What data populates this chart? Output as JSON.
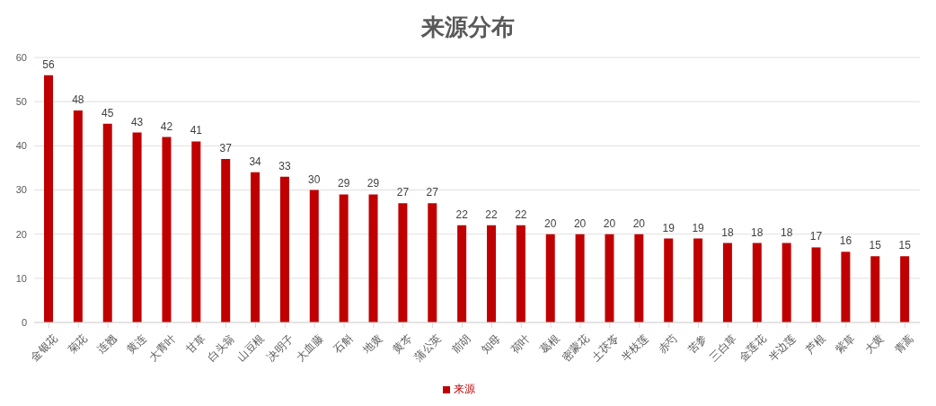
{
  "chart_data": {
    "type": "bar",
    "title": "来源分布",
    "categories": [
      "金银花",
      "菊花",
      "连翘",
      "黄连",
      "大青叶",
      "甘草",
      "白头翁",
      "山豆根",
      "决明子",
      "大血藤",
      "石斛",
      "地黄",
      "黄芩",
      "蒲公英",
      "前胡",
      "知母",
      "荷叶",
      "葛根",
      "密蒙花",
      "土茯苓",
      "半枝莲",
      "赤芍",
      "苦参",
      "三白草",
      "金莲花",
      "半边莲",
      "芦根",
      "紫草",
      "大黄",
      "青蒿"
    ],
    "series": [
      {
        "name": "来源",
        "color": "#c00000",
        "values": [
          56,
          48,
          45,
          43,
          42,
          41,
          37,
          34,
          33,
          30,
          29,
          29,
          27,
          27,
          22,
          22,
          22,
          20,
          20,
          20,
          20,
          19,
          19,
          18,
          18,
          18,
          17,
          16,
          15,
          15
        ]
      }
    ],
    "ylim": [
      0,
      60
    ],
    "yticks": [
      0,
      10,
      20,
      30,
      40,
      50,
      60
    ],
    "grid": "y",
    "legend": "bottom",
    "data_labels": true
  }
}
